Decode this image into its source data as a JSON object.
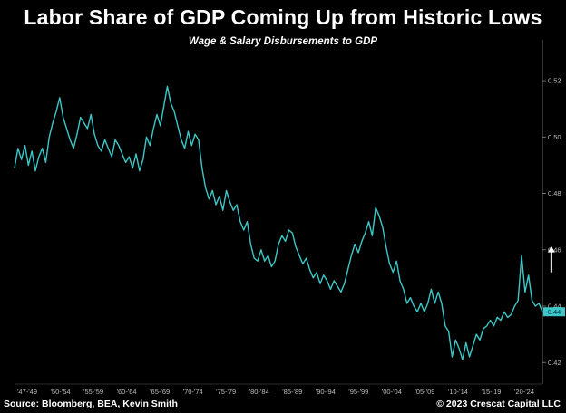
{
  "chart_data": {
    "type": "line",
    "title": "Labor Share of GDP Coming Up from Historic Lows",
    "subtitle": "Wage & Salary Disbursements to GDP",
    "xlabel": "",
    "ylabel": "",
    "xlim": [
      1947,
      2023
    ],
    "ylim": [
      0.413,
      0.53
    ],
    "x_tick_labels": [
      "'47-'49",
      "'50-'54",
      "'55-'59",
      "'60-'64",
      "'65-'69",
      "'70-'74",
      "'75-'79",
      "'80-'84",
      "'85-'89",
      "'90-'94",
      "'95-'99",
      "'00-'04",
      "'05-'09",
      "'10-'14",
      "'15-'19",
      "'20-'24"
    ],
    "y_ticks": [
      0.42,
      0.44,
      0.46,
      0.48,
      0.5,
      0.52
    ],
    "y_tick_labels": [
      "0.42",
      "0.44",
      "0.46",
      "0.48",
      "0.50",
      "0.52"
    ],
    "last_value_label": "0.44",
    "series": [
      {
        "name": "Wage & Salary Disbursements to GDP",
        "color": "#3cc8c8",
        "points": [
          [
            1947.0,
            0.489
          ],
          [
            1947.5,
            0.496
          ],
          [
            1948.0,
            0.492
          ],
          [
            1948.5,
            0.497
          ],
          [
            1949.0,
            0.49
          ],
          [
            1949.5,
            0.495
          ],
          [
            1950.0,
            0.488
          ],
          [
            1950.5,
            0.493
          ],
          [
            1951.0,
            0.496
          ],
          [
            1951.5,
            0.491
          ],
          [
            1952.0,
            0.5
          ],
          [
            1952.5,
            0.505
          ],
          [
            1953.0,
            0.509
          ],
          [
            1953.5,
            0.514
          ],
          [
            1954.0,
            0.507
          ],
          [
            1954.5,
            0.503
          ],
          [
            1955.0,
            0.499
          ],
          [
            1955.5,
            0.496
          ],
          [
            1956.0,
            0.501
          ],
          [
            1956.5,
            0.507
          ],
          [
            1957.0,
            0.505
          ],
          [
            1957.5,
            0.503
          ],
          [
            1958.0,
            0.508
          ],
          [
            1958.5,
            0.501
          ],
          [
            1959.0,
            0.497
          ],
          [
            1959.5,
            0.495
          ],
          [
            1960.0,
            0.499
          ],
          [
            1960.5,
            0.496
          ],
          [
            1961.0,
            0.493
          ],
          [
            1961.5,
            0.499
          ],
          [
            1962.0,
            0.497
          ],
          [
            1962.5,
            0.494
          ],
          [
            1963.0,
            0.491
          ],
          [
            1963.5,
            0.493
          ],
          [
            1964.0,
            0.489
          ],
          [
            1964.5,
            0.494
          ],
          [
            1965.0,
            0.488
          ],
          [
            1965.5,
            0.492
          ],
          [
            1966.0,
            0.5
          ],
          [
            1966.5,
            0.497
          ],
          [
            1967.0,
            0.503
          ],
          [
            1967.5,
            0.508
          ],
          [
            1968.0,
            0.504
          ],
          [
            1968.5,
            0.511
          ],
          [
            1969.0,
            0.518
          ],
          [
            1969.5,
            0.512
          ],
          [
            1970.0,
            0.509
          ],
          [
            1970.5,
            0.504
          ],
          [
            1971.0,
            0.499
          ],
          [
            1971.5,
            0.496
          ],
          [
            1972.0,
            0.502
          ],
          [
            1972.5,
            0.497
          ],
          [
            1973.0,
            0.501
          ],
          [
            1973.5,
            0.499
          ],
          [
            1974.0,
            0.489
          ],
          [
            1974.5,
            0.482
          ],
          [
            1975.0,
            0.478
          ],
          [
            1975.5,
            0.481
          ],
          [
            1976.0,
            0.476
          ],
          [
            1976.5,
            0.479
          ],
          [
            1977.0,
            0.474
          ],
          [
            1977.5,
            0.481
          ],
          [
            1978.0,
            0.477
          ],
          [
            1978.5,
            0.474
          ],
          [
            1979.0,
            0.476
          ],
          [
            1979.5,
            0.47
          ],
          [
            1980.0,
            0.467
          ],
          [
            1980.5,
            0.47
          ],
          [
            1981.0,
            0.462
          ],
          [
            1981.5,
            0.457
          ],
          [
            1982.0,
            0.456
          ],
          [
            1982.5,
            0.46
          ],
          [
            1983.0,
            0.456
          ],
          [
            1983.5,
            0.458
          ],
          [
            1984.0,
            0.454
          ],
          [
            1984.5,
            0.456
          ],
          [
            1985.0,
            0.462
          ],
          [
            1985.5,
            0.465
          ],
          [
            1986.0,
            0.463
          ],
          [
            1986.5,
            0.467
          ],
          [
            1987.0,
            0.466
          ],
          [
            1987.5,
            0.461
          ],
          [
            1988.0,
            0.458
          ],
          [
            1988.5,
            0.455
          ],
          [
            1989.0,
            0.457
          ],
          [
            1989.5,
            0.453
          ],
          [
            1990.0,
            0.45
          ],
          [
            1990.5,
            0.452
          ],
          [
            1991.0,
            0.448
          ],
          [
            1991.5,
            0.451
          ],
          [
            1992.0,
            0.449
          ],
          [
            1992.5,
            0.446
          ],
          [
            1993.0,
            0.449
          ],
          [
            1993.5,
            0.447
          ],
          [
            1994.0,
            0.445
          ],
          [
            1994.5,
            0.448
          ],
          [
            1995.0,
            0.453
          ],
          [
            1995.5,
            0.458
          ],
          [
            1996.0,
            0.462
          ],
          [
            1996.5,
            0.459
          ],
          [
            1997.0,
            0.463
          ],
          [
            1997.5,
            0.466
          ],
          [
            1998.0,
            0.47
          ],
          [
            1998.5,
            0.465
          ],
          [
            1999.0,
            0.475
          ],
          [
            1999.5,
            0.472
          ],
          [
            2000.0,
            0.468
          ],
          [
            2000.5,
            0.461
          ],
          [
            2001.0,
            0.455
          ],
          [
            2001.5,
            0.452
          ],
          [
            2002.0,
            0.456
          ],
          [
            2002.5,
            0.449
          ],
          [
            2003.0,
            0.446
          ],
          [
            2003.5,
            0.441
          ],
          [
            2004.0,
            0.443
          ],
          [
            2004.5,
            0.44
          ],
          [
            2005.0,
            0.438
          ],
          [
            2005.5,
            0.441
          ],
          [
            2006.0,
            0.438
          ],
          [
            2006.5,
            0.441
          ],
          [
            2007.0,
            0.446
          ],
          [
            2007.5,
            0.441
          ],
          [
            2008.0,
            0.445
          ],
          [
            2008.5,
            0.441
          ],
          [
            2009.0,
            0.433
          ],
          [
            2009.5,
            0.431
          ],
          [
            2010.0,
            0.422
          ],
          [
            2010.5,
            0.428
          ],
          [
            2011.0,
            0.425
          ],
          [
            2011.5,
            0.421
          ],
          [
            2012.0,
            0.427
          ],
          [
            2012.5,
            0.422
          ],
          [
            2013.0,
            0.426
          ],
          [
            2013.5,
            0.43
          ],
          [
            2014.0,
            0.428
          ],
          [
            2014.5,
            0.432
          ],
          [
            2015.0,
            0.433
          ],
          [
            2015.5,
            0.435
          ],
          [
            2016.0,
            0.433
          ],
          [
            2016.5,
            0.436
          ],
          [
            2017.0,
            0.435
          ],
          [
            2017.5,
            0.438
          ],
          [
            2018.0,
            0.436
          ],
          [
            2018.5,
            0.437
          ],
          [
            2019.0,
            0.44
          ],
          [
            2019.5,
            0.442
          ],
          [
            2020.0,
            0.458
          ],
          [
            2020.5,
            0.445
          ],
          [
            2021.0,
            0.451
          ],
          [
            2021.5,
            0.442
          ],
          [
            2022.0,
            0.44
          ],
          [
            2022.5,
            0.441
          ],
          [
            2023.0,
            0.438
          ]
        ]
      }
    ]
  },
  "footer": {
    "source": "Source: Bloomberg, BEA, Kevin Smith",
    "copyright": "© 2023 Crescat Capital LLC"
  },
  "annotation": {
    "arrow_icon": "up-arrow-icon",
    "arrow_color": "#ffffff"
  }
}
